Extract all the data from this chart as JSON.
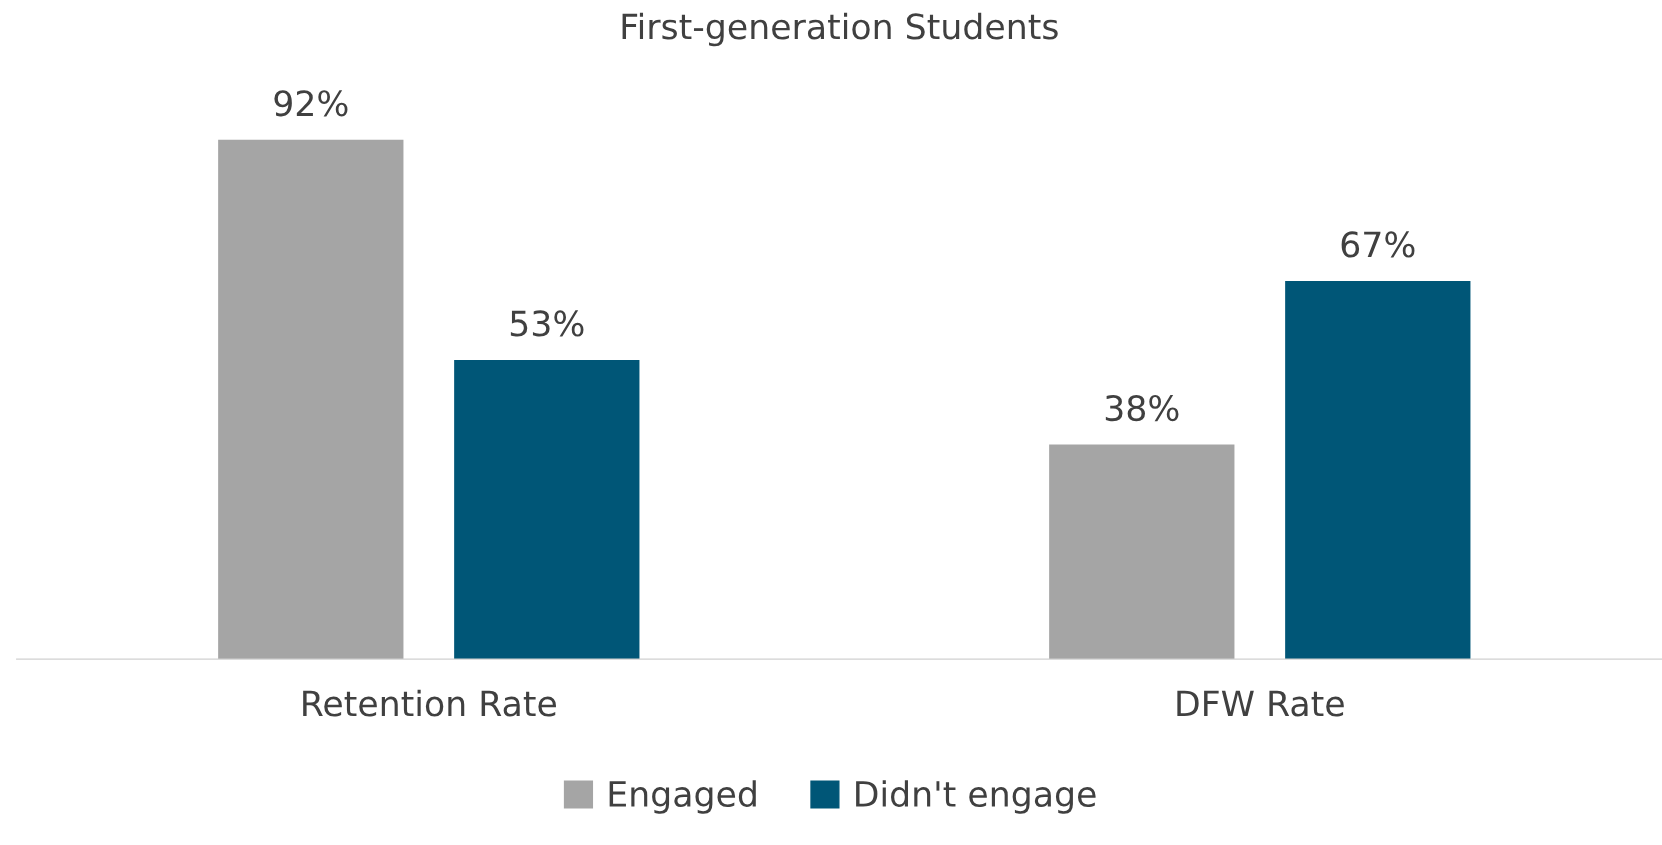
{
  "chart_data": {
    "type": "bar",
    "title": "First-generation Students",
    "categories": [
      "Retention Rate",
      "DFW Rate"
    ],
    "series": [
      {
        "name": "Engaged",
        "color": "#a5a5a5",
        "values": [
          92,
          38
        ],
        "value_labels": [
          "92%",
          "38%"
        ]
      },
      {
        "name": "Didn't engage",
        "color": "#005677",
        "values": [
          53,
          67
        ],
        "value_labels": [
          "53%",
          "67%"
        ]
      }
    ],
    "tick_labels": "x",
    "legend": "bottom",
    "grid": false
  }
}
